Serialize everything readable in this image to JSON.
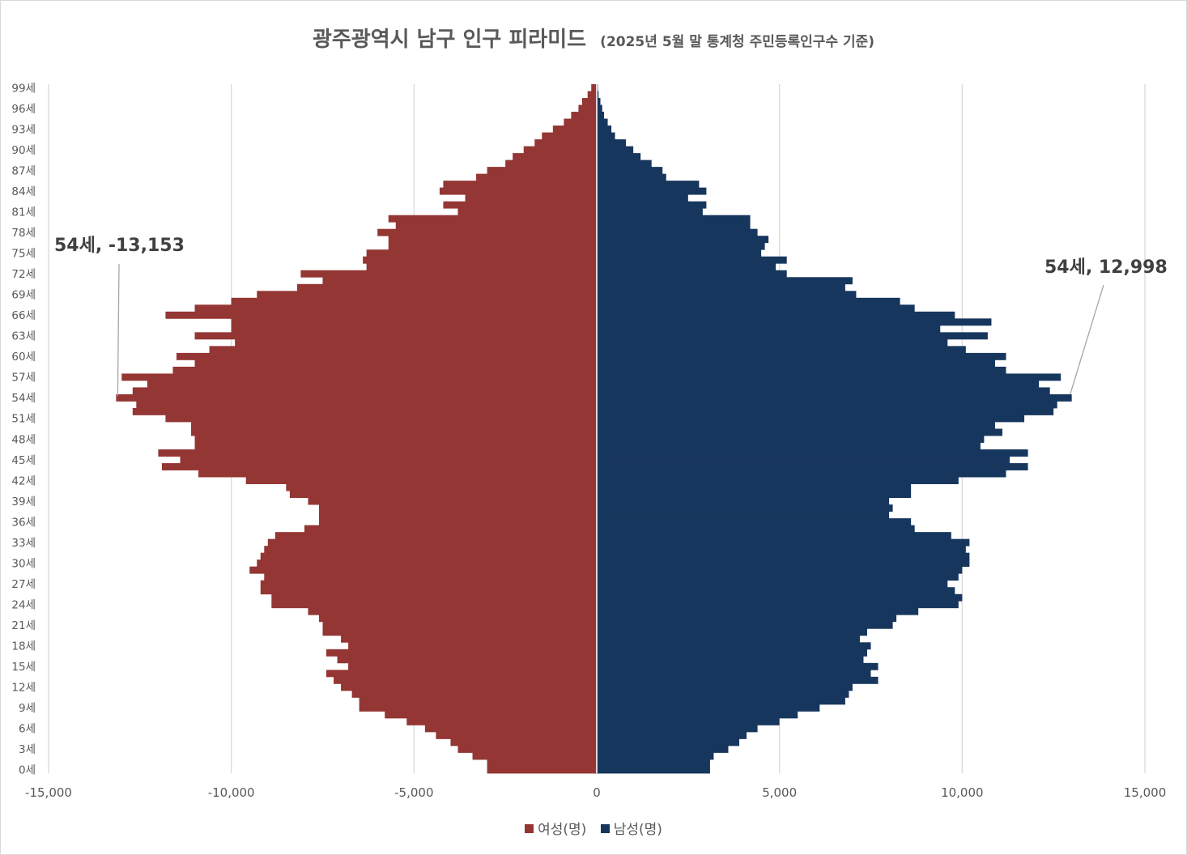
{
  "chart_data": {
    "type": "bar",
    "orientation": "horizontal",
    "title": "광주광역시 남구 인구 피라미드",
    "subtitle": "(2025년 5월 말 통계청 주민등록인구수 기준)",
    "xlim": [
      -15000,
      15000
    ],
    "xticks": [
      -15000,
      -10000,
      -5000,
      0,
      5000,
      10000,
      15000
    ],
    "xtick_labels": [
      "-15,000",
      "-10,000",
      "-5,000",
      "0",
      "5,000",
      "10,000",
      "15,000"
    ],
    "ytick_labels": [
      "0세",
      "3세",
      "6세",
      "9세",
      "12세",
      "15세",
      "18세",
      "21세",
      "24세",
      "27세",
      "30세",
      "33세",
      "36세",
      "39세",
      "42세",
      "45세",
      "48세",
      "51세",
      "54세",
      "57세",
      "60세",
      "63세",
      "66세",
      "69세",
      "72세",
      "75세",
      "78세",
      "81세",
      "84세",
      "87세",
      "90세",
      "93세",
      "96세",
      "99세"
    ],
    "categories": [
      "0세",
      "1세",
      "2세",
      "3세",
      "4세",
      "5세",
      "6세",
      "7세",
      "8세",
      "9세",
      "10세",
      "11세",
      "12세",
      "13세",
      "14세",
      "15세",
      "16세",
      "17세",
      "18세",
      "19세",
      "20세",
      "21세",
      "22세",
      "23세",
      "24세",
      "25세",
      "26세",
      "27세",
      "28세",
      "29세",
      "30세",
      "31세",
      "32세",
      "33세",
      "34세",
      "35세",
      "36세",
      "37세",
      "38세",
      "39세",
      "40세",
      "41세",
      "42세",
      "43세",
      "44세",
      "45세",
      "46세",
      "47세",
      "48세",
      "49세",
      "50세",
      "51세",
      "52세",
      "53세",
      "54세",
      "55세",
      "56세",
      "57세",
      "58세",
      "59세",
      "60세",
      "61세",
      "62세",
      "63세",
      "64세",
      "65세",
      "66세",
      "67세",
      "68세",
      "69세",
      "70세",
      "71세",
      "72세",
      "73세",
      "74세",
      "75세",
      "76세",
      "77세",
      "78세",
      "79세",
      "80세",
      "81세",
      "82세",
      "83세",
      "84세",
      "85세",
      "86세",
      "87세",
      "88세",
      "89세",
      "90세",
      "91세",
      "92세",
      "93세",
      "94세",
      "95세",
      "96세",
      "97세",
      "98세",
      "99세"
    ],
    "grid": true,
    "legend_position": "bottom",
    "series": [
      {
        "name": "여성(명)",
        "color": "#943634",
        "values": [
          -3000,
          -3000,
          -3400,
          -3800,
          -4000,
          -4400,
          -4700,
          -5200,
          -5800,
          -6500,
          -6500,
          -6700,
          -7000,
          -7200,
          -7400,
          -6800,
          -7100,
          -7400,
          -6800,
          -7000,
          -7500,
          -7500,
          -7600,
          -7900,
          -8900,
          -8900,
          -9200,
          -9200,
          -9100,
          -9500,
          -9300,
          -9200,
          -9100,
          -9000,
          -8800,
          -8000,
          -7600,
          -7600,
          -7600,
          -7900,
          -8400,
          -8500,
          -9600,
          -10900,
          -11900,
          -11400,
          -12000,
          -11000,
          -11000,
          -11100,
          -11100,
          -11800,
          -12700,
          -12600,
          -13153,
          -12700,
          -12300,
          -13000,
          -11600,
          -11000,
          -11500,
          -10600,
          -9900,
          -11000,
          -10000,
          -10000,
          -11800,
          -11000,
          -10000,
          -9300,
          -8200,
          -7500,
          -8100,
          -6300,
          -6400,
          -6300,
          -5700,
          -5700,
          -6000,
          -5500,
          -5700,
          -3800,
          -4200,
          -3600,
          -4300,
          -4200,
          -3300,
          -3000,
          -2500,
          -2300,
          -2000,
          -1700,
          -1500,
          -1200,
          -900,
          -700,
          -500,
          -400,
          -250,
          -150
        ],
        "label": "54세, -13,153"
      },
      {
        "name": "남성(명)",
        "color": "#17365d",
        "values": [
          3100,
          3100,
          3200,
          3600,
          3900,
          4100,
          4400,
          5000,
          5500,
          6100,
          6800,
          6900,
          7000,
          7700,
          7500,
          7700,
          7300,
          7400,
          7500,
          7200,
          7400,
          8100,
          8200,
          8800,
          9900,
          10000,
          9800,
          9600,
          9900,
          10000,
          10200,
          10200,
          10100,
          10200,
          9700,
          8700,
          8600,
          8000,
          8100,
          8000,
          8600,
          8600,
          9900,
          11200,
          11800,
          11300,
          11800,
          10500,
          10600,
          11100,
          10900,
          11700,
          12500,
          12600,
          12998,
          12400,
          12100,
          12700,
          11200,
          10900,
          11200,
          10100,
          9600,
          10700,
          9400,
          10800,
          9800,
          8700,
          8300,
          7100,
          6800,
          7000,
          5200,
          4900,
          5200,
          4500,
          4600,
          4700,
          4400,
          4200,
          4200,
          2900,
          3000,
          2500,
          3000,
          2800,
          1900,
          1800,
          1500,
          1200,
          1000,
          800,
          500,
          400,
          300,
          200,
          150,
          100,
          50,
          30
        ],
        "label": "54세, 12,998"
      }
    ],
    "annotations": [
      {
        "text": "54세, -13,153",
        "category": "54세",
        "value": -13153,
        "side": "left"
      },
      {
        "text": "54세, 12,998",
        "category": "54세",
        "value": 12998,
        "side": "right"
      }
    ]
  }
}
